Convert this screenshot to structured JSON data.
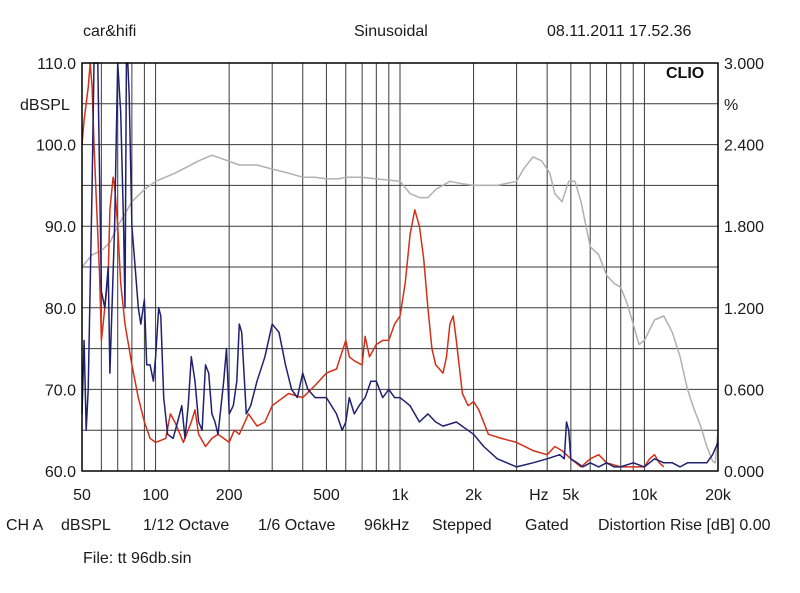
{
  "header": {
    "left": "car&hifi",
    "center": "Sinusoidal",
    "right": "08.11.2011 17.52.36"
  },
  "logo": "CLIO",
  "footer": {
    "ch": "CH A",
    "unit": "dBSPL",
    "smoothing1": "1/12 Octave",
    "smoothing2": "1/6 Octave",
    "rate": "96kHz",
    "mode": "Stepped",
    "gate": "Gated",
    "distortion": "Distortion Rise [dB] 0.00",
    "file": "File: tt 96db.sin"
  },
  "chart_data": {
    "type": "line",
    "xscale": "log",
    "xlim": [
      50,
      20000
    ],
    "xticks": [
      {
        "v": 50,
        "label": "50"
      },
      {
        "v": 100,
        "label": "100"
      },
      {
        "v": 200,
        "label": "200"
      },
      {
        "v": 500,
        "label": "500"
      },
      {
        "v": 1000,
        "label": "1k"
      },
      {
        "v": 2000,
        "label": "2k"
      },
      {
        "v": 5000,
        "label": "5k"
      },
      {
        "v": 10000,
        "label": "10k"
      },
      {
        "v": 20000,
        "label": "20k"
      }
    ],
    "xunit": {
      "v": 3700,
      "label": "Hz"
    },
    "ylim_left": [
      60,
      110
    ],
    "ylabel_left": "dBSPL",
    "yticks_left": [
      "60.0",
      "70.0",
      "80.0",
      "90.0",
      "100.0",
      "110.0"
    ],
    "ylim_right": [
      0,
      3
    ],
    "ylabel_right": "%",
    "yticks_right": [
      "0.000",
      "0.600",
      "1.200",
      "1.800",
      "2.400",
      "3.000"
    ],
    "grid": true,
    "series": [
      {
        "color": "#b0b0b0",
        "axis": "left",
        "points": [
          [
            50,
            85
          ],
          [
            55,
            86.5
          ],
          [
            60,
            87
          ],
          [
            65,
            88
          ],
          [
            70,
            90
          ],
          [
            80,
            93
          ],
          [
            90,
            94.5
          ],
          [
            100,
            95.5
          ],
          [
            120,
            96.5
          ],
          [
            150,
            98
          ],
          [
            170,
            98.7
          ],
          [
            190,
            98.2
          ],
          [
            220,
            97.5
          ],
          [
            260,
            97.5
          ],
          [
            300,
            97
          ],
          [
            350,
            96.5
          ],
          [
            400,
            96
          ],
          [
            450,
            96
          ],
          [
            500,
            95.8
          ],
          [
            560,
            95.8
          ],
          [
            600,
            96
          ],
          [
            700,
            96
          ],
          [
            800,
            95.8
          ],
          [
            1000,
            95.5
          ],
          [
            1100,
            94
          ],
          [
            1200,
            93.5
          ],
          [
            1300,
            93.5
          ],
          [
            1400,
            94.5
          ],
          [
            1600,
            95.5
          ],
          [
            1800,
            95.2
          ],
          [
            2000,
            95
          ],
          [
            2500,
            95
          ],
          [
            3000,
            95.5
          ],
          [
            3200,
            97
          ],
          [
            3500,
            98.5
          ],
          [
            3800,
            98
          ],
          [
            4100,
            96.5
          ],
          [
            4300,
            94
          ],
          [
            4600,
            93
          ],
          [
            4900,
            95.5
          ],
          [
            5200,
            95.5
          ],
          [
            5500,
            93
          ],
          [
            6000,
            87.5
          ],
          [
            6500,
            86.5
          ],
          [
            7000,
            84
          ],
          [
            7500,
            83
          ],
          [
            8000,
            82.5
          ],
          [
            8500,
            80.5
          ],
          [
            9000,
            78
          ],
          [
            9500,
            75.5
          ],
          [
            10000,
            76
          ],
          [
            11000,
            78.5
          ],
          [
            12000,
            79
          ],
          [
            13000,
            77
          ],
          [
            14000,
            74
          ],
          [
            15000,
            70
          ],
          [
            16000,
            67.5
          ],
          [
            17000,
            65.5
          ],
          [
            18000,
            63
          ],
          [
            19000,
            61.2
          ],
          [
            19500,
            61
          ],
          [
            20000,
            65
          ]
        ]
      },
      {
        "color": "#d23018",
        "axis": "left",
        "points": [
          [
            50,
            100
          ],
          [
            51,
            103
          ],
          [
            53,
            107
          ],
          [
            54,
            110
          ],
          [
            55,
            107
          ],
          [
            56,
            100
          ],
          [
            58,
            89
          ],
          [
            59,
            84
          ],
          [
            60,
            76
          ],
          [
            62,
            80
          ],
          [
            64,
            84
          ],
          [
            65,
            92
          ],
          [
            67,
            96
          ],
          [
            68,
            95
          ],
          [
            70,
            90
          ],
          [
            72,
            83
          ],
          [
            75,
            78
          ],
          [
            80,
            73
          ],
          [
            85,
            69
          ],
          [
            90,
            66
          ],
          [
            95,
            64
          ],
          [
            100,
            63.5
          ],
          [
            110,
            64
          ],
          [
            115,
            67
          ],
          [
            120,
            66
          ],
          [
            130,
            63.5
          ],
          [
            140,
            66
          ],
          [
            145,
            67.5
          ],
          [
            150,
            64.5
          ],
          [
            160,
            63
          ],
          [
            170,
            64
          ],
          [
            180,
            64.5
          ],
          [
            190,
            64
          ],
          [
            200,
            63.5
          ],
          [
            210,
            65
          ],
          [
            220,
            64.5
          ],
          [
            240,
            67
          ],
          [
            260,
            65.5
          ],
          [
            280,
            66
          ],
          [
            300,
            68
          ],
          [
            350,
            69.5
          ],
          [
            400,
            69
          ],
          [
            450,
            70.5
          ],
          [
            500,
            72
          ],
          [
            550,
            72.5
          ],
          [
            600,
            76
          ],
          [
            620,
            74
          ],
          [
            650,
            73.5
          ],
          [
            700,
            73
          ],
          [
            720,
            76.5
          ],
          [
            750,
            74
          ],
          [
            800,
            75.5
          ],
          [
            850,
            76
          ],
          [
            900,
            76
          ],
          [
            950,
            78
          ],
          [
            1000,
            79
          ],
          [
            1050,
            83
          ],
          [
            1100,
            89
          ],
          [
            1150,
            92
          ],
          [
            1200,
            90
          ],
          [
            1250,
            86
          ],
          [
            1300,
            80
          ],
          [
            1350,
            75
          ],
          [
            1400,
            73
          ],
          [
            1500,
            72
          ],
          [
            1550,
            74
          ],
          [
            1600,
            78
          ],
          [
            1650,
            79
          ],
          [
            1700,
            76
          ],
          [
            1800,
            69.5
          ],
          [
            1900,
            68
          ],
          [
            2000,
            68.5
          ],
          [
            2100,
            67.5
          ],
          [
            2300,
            64.5
          ],
          [
            2600,
            64
          ],
          [
            3000,
            63.5
          ],
          [
            3500,
            62.5
          ],
          [
            4000,
            62
          ],
          [
            4300,
            63
          ],
          [
            4600,
            62.5
          ],
          [
            5000,
            61.5
          ],
          [
            5500,
            60.5
          ],
          [
            6000,
            61.5
          ],
          [
            6500,
            62
          ],
          [
            7000,
            61
          ],
          [
            8000,
            60.5
          ],
          [
            9000,
            60.5
          ],
          [
            10000,
            60.5
          ],
          [
            10500,
            61.5
          ],
          [
            11000,
            62
          ],
          [
            11500,
            61
          ],
          [
            12000,
            60.5
          ]
        ]
      },
      {
        "color": "#202070",
        "axis": "left",
        "points": [
          [
            50,
            67
          ],
          [
            51,
            76
          ],
          [
            52,
            65
          ],
          [
            53,
            70
          ],
          [
            55,
            95
          ],
          [
            56,
            110
          ],
          [
            58,
            110
          ],
          [
            60,
            82
          ],
          [
            62,
            80
          ],
          [
            64,
            85
          ],
          [
            65,
            72
          ],
          [
            68,
            90
          ],
          [
            70,
            110
          ],
          [
            72,
            104
          ],
          [
            74,
            90
          ],
          [
            75,
            80
          ],
          [
            76,
            110
          ],
          [
            77,
            110
          ],
          [
            78,
            106
          ],
          [
            80,
            90
          ],
          [
            82,
            86
          ],
          [
            85,
            80
          ],
          [
            87,
            78
          ],
          [
            90,
            81
          ],
          [
            92,
            73
          ],
          [
            95,
            73
          ],
          [
            98,
            71
          ],
          [
            100,
            74
          ],
          [
            103,
            80
          ],
          [
            105,
            79
          ],
          [
            108,
            69
          ],
          [
            112,
            64.5
          ],
          [
            118,
            64
          ],
          [
            123,
            66
          ],
          [
            128,
            68
          ],
          [
            132,
            64
          ],
          [
            136,
            68
          ],
          [
            140,
            74
          ],
          [
            145,
            71
          ],
          [
            150,
            66
          ],
          [
            155,
            65
          ],
          [
            160,
            73
          ],
          [
            165,
            72
          ],
          [
            170,
            67
          ],
          [
            175,
            66
          ],
          [
            180,
            64.5
          ],
          [
            190,
            71
          ],
          [
            195,
            75
          ],
          [
            200,
            67
          ],
          [
            208,
            68
          ],
          [
            215,
            71
          ],
          [
            220,
            78
          ],
          [
            225,
            77
          ],
          [
            235,
            67
          ],
          [
            245,
            68
          ],
          [
            260,
            71
          ],
          [
            280,
            74
          ],
          [
            300,
            78
          ],
          [
            320,
            77
          ],
          [
            340,
            73
          ],
          [
            360,
            70
          ],
          [
            380,
            69
          ],
          [
            400,
            72
          ],
          [
            420,
            70
          ],
          [
            450,
            69
          ],
          [
            500,
            69
          ],
          [
            550,
            67
          ],
          [
            580,
            65
          ],
          [
            600,
            66
          ],
          [
            620,
            69
          ],
          [
            650,
            67
          ],
          [
            680,
            68
          ],
          [
            720,
            69
          ],
          [
            760,
            71
          ],
          [
            800,
            71
          ],
          [
            850,
            69
          ],
          [
            900,
            70
          ],
          [
            950,
            69
          ],
          [
            1000,
            69
          ],
          [
            1100,
            68
          ],
          [
            1200,
            66
          ],
          [
            1300,
            67
          ],
          [
            1400,
            66
          ],
          [
            1500,
            65.5
          ],
          [
            1700,
            66
          ],
          [
            2000,
            64.5
          ],
          [
            2200,
            63
          ],
          [
            2500,
            61.5
          ],
          [
            3000,
            60.5
          ],
          [
            3500,
            61
          ],
          [
            4000,
            61.5
          ],
          [
            4500,
            62
          ],
          [
            4700,
            61.5
          ],
          [
            4800,
            66
          ],
          [
            4900,
            65
          ],
          [
            5000,
            61.5
          ],
          [
            5300,
            61
          ],
          [
            5600,
            60.5
          ],
          [
            6000,
            61
          ],
          [
            6500,
            60.5
          ],
          [
            7000,
            61
          ],
          [
            7500,
            60.5
          ],
          [
            8000,
            60.5
          ],
          [
            9000,
            61
          ],
          [
            10000,
            60.5
          ],
          [
            11000,
            61.5
          ],
          [
            12000,
            61
          ],
          [
            13000,
            61
          ],
          [
            14000,
            60.5
          ],
          [
            15000,
            61
          ],
          [
            16000,
            61
          ],
          [
            17000,
            61
          ],
          [
            18000,
            61
          ],
          [
            19000,
            62
          ],
          [
            20000,
            63.5
          ]
        ]
      }
    ]
  }
}
